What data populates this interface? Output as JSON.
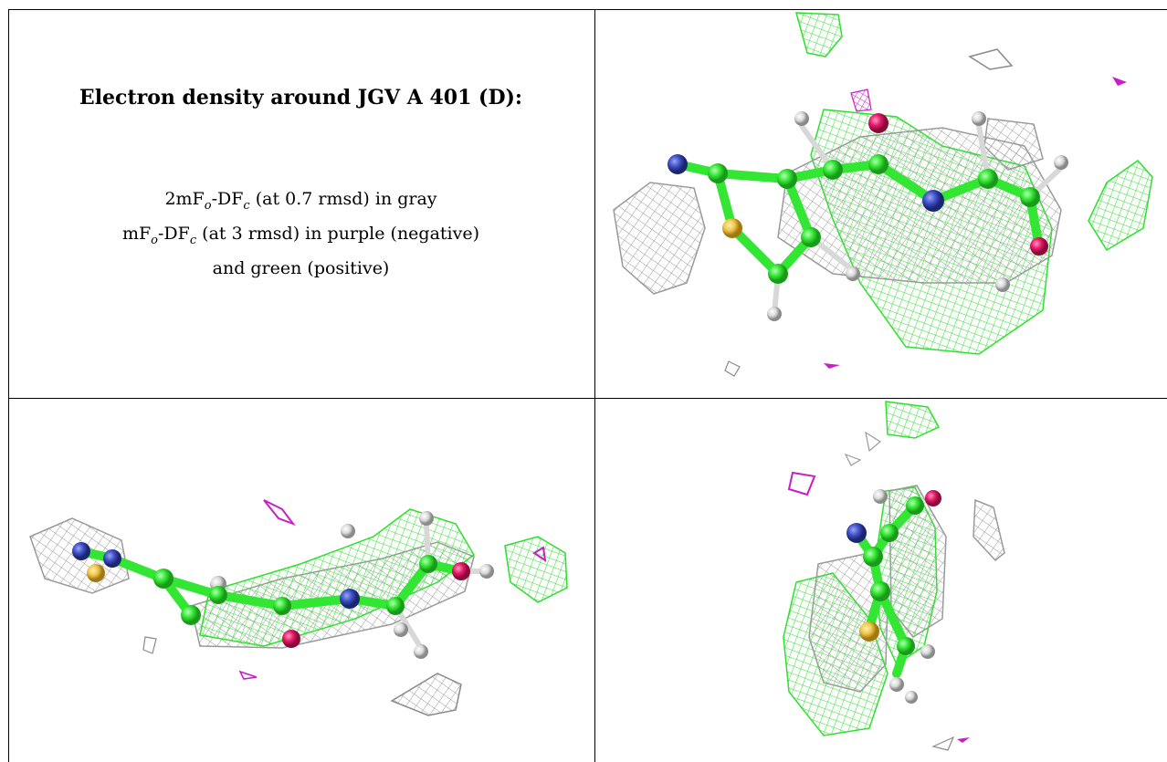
{
  "panel": {
    "title": "Electron density around JGV A 401 (D):",
    "legend": {
      "line1": {
        "pre": "2mF",
        "sub1": "o",
        "mid": "-DF",
        "sub2": "c",
        "post": " (at 0.7 rmsd) in gray"
      },
      "line2": {
        "pre": "mF",
        "sub1": "o",
        "mid": "-DF",
        "sub2": "c",
        "post": " (at 3 rmsd) in purple (negative)"
      },
      "line3": "and green (positive)"
    }
  },
  "colors": {
    "carbon": "#33e633",
    "nitrogen": "#3f4fc8",
    "sulfur": "#f0c64a",
    "oxygen": "#e8186a",
    "hydrogen": "#d8d8d8",
    "map_2fofc": "#9a9a9a",
    "map_positive": "#2ee02e",
    "map_negative": "#c81ec8"
  }
}
